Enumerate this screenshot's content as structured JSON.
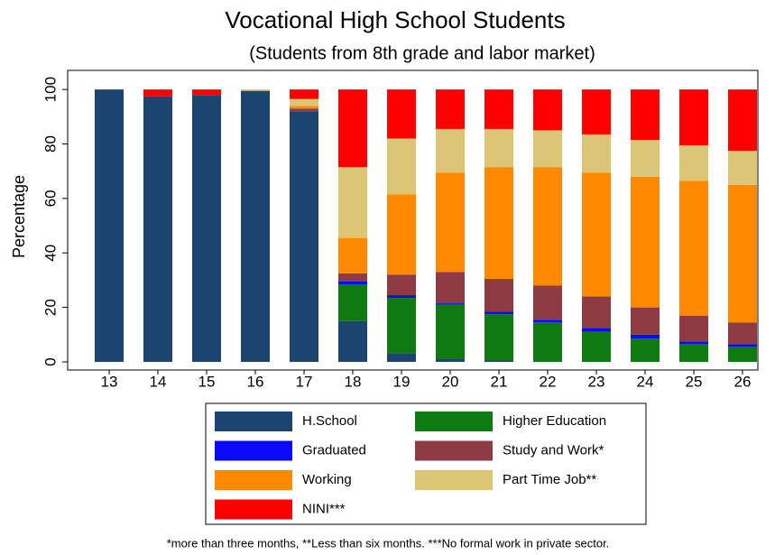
{
  "chart_data": {
    "type": "stacked_bar",
    "title": "Vocational High School Students",
    "subtitle": "(Students from 8th grade and labor market)",
    "y_label": "Percentage",
    "footnote": "*more than three months, **Less than six months. ***No formal work in private sector.",
    "categories": [
      "13",
      "14",
      "15",
      "16",
      "17",
      "18",
      "19",
      "20",
      "21",
      "22",
      "23",
      "24",
      "25",
      "26"
    ],
    "ylim": [
      0,
      107
    ],
    "yticks": [
      0,
      20,
      40,
      60,
      80,
      100
    ],
    "series": [
      {
        "name": "H.School",
        "color": "#1c4470",
        "values": [
          100,
          97.5,
          98,
          99.5,
          92,
          15,
          3,
          1,
          0.5,
          0,
          0,
          0,
          0,
          0
        ]
      },
      {
        "name": "Higher Education",
        "color": "#0f7a12",
        "values": [
          0,
          0,
          0,
          0,
          0,
          13.5,
          20.5,
          20,
          17,
          14.5,
          11,
          8.5,
          6.5,
          5.5
        ]
      },
      {
        "name": "Graduated",
        "color": "#0a0aff",
        "values": [
          0,
          0,
          0,
          0,
          0,
          1,
          1,
          0.5,
          1,
          1,
          1.5,
          1.5,
          1,
          1
        ]
      },
      {
        "name": "Study and Work*",
        "color": "#8e3b44",
        "values": [
          0,
          0,
          0,
          0,
          1,
          3,
          7.5,
          11.5,
          12,
          12.5,
          11.5,
          10,
          9.5,
          8
        ]
      },
      {
        "name": "Working",
        "color": "#ff8a00",
        "values": [
          0,
          0,
          0,
          0,
          1,
          13,
          29.5,
          36.5,
          41,
          43.5,
          45.5,
          48,
          49.5,
          50.5
        ]
      },
      {
        "name": "Part Time Job**",
        "color": "#dcc575",
        "values": [
          0,
          0,
          0,
          0.5,
          2.5,
          26,
          20.5,
          16,
          14,
          13.5,
          14,
          13.5,
          13,
          12.5
        ]
      },
      {
        "name": "NINI***",
        "color": "#ff0000",
        "values": [
          0,
          2.5,
          2,
          0,
          3.5,
          28.5,
          18,
          14.5,
          14.5,
          15,
          16.5,
          18.5,
          20.5,
          22.5
        ]
      }
    ]
  }
}
